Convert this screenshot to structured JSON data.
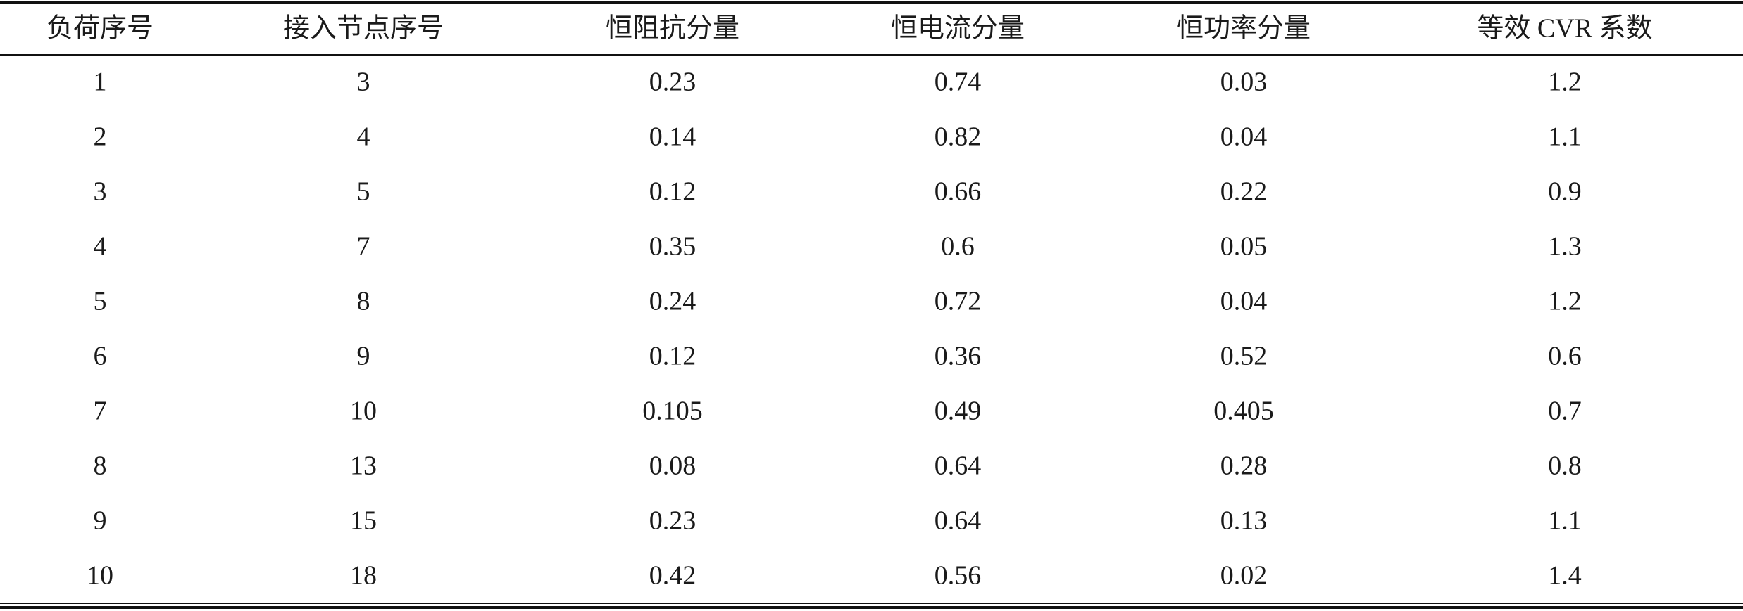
{
  "table": {
    "header": [
      "负荷序号",
      "接入节点序号",
      "恒阻抗分量",
      "恒电流分量",
      "恒功率分量",
      "等效 CVR 系数"
    ],
    "rows": [
      [
        1,
        3,
        0.23,
        0.74,
        0.03,
        1.2
      ],
      [
        2,
        4,
        0.14,
        0.82,
        0.04,
        1.1
      ],
      [
        3,
        5,
        0.12,
        0.66,
        0.22,
        0.9
      ],
      [
        4,
        7,
        0.35,
        0.6,
        0.05,
        1.3
      ],
      [
        5,
        8,
        0.24,
        0.72,
        0.04,
        1.2
      ],
      [
        6,
        9,
        0.12,
        0.36,
        0.52,
        0.6
      ],
      [
        7,
        10,
        0.105,
        0.49,
        0.405,
        0.7
      ],
      [
        8,
        13,
        0.08,
        0.64,
        0.28,
        0.8
      ],
      [
        9,
        15,
        0.23,
        0.64,
        0.13,
        1.1
      ],
      [
        10,
        18,
        0.42,
        0.56,
        0.02,
        1.4
      ]
    ]
  }
}
